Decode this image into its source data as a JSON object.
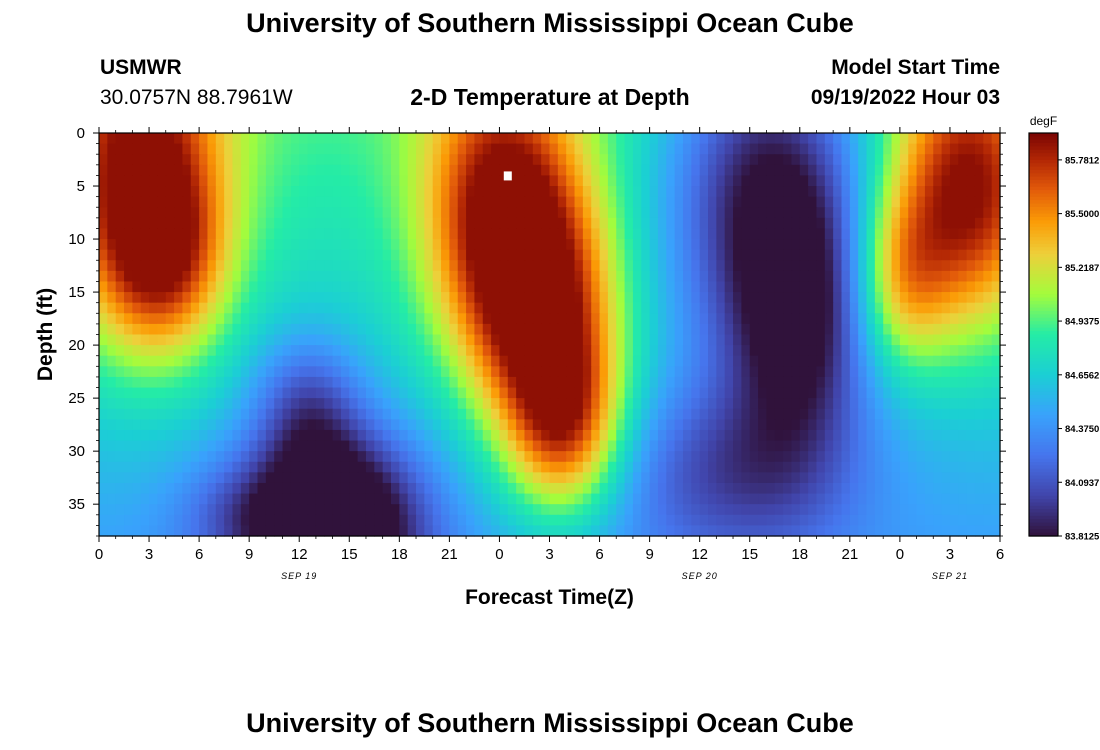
{
  "page": {
    "title": "University of Southern Mississippi Ocean Cube",
    "station": "USMWR",
    "coords": "30.0757N  88.7961W",
    "plot_title": "2-D Temperature at Depth",
    "model_label": "Model Start Time",
    "model_time": "09/19/2022 Hour 03",
    "footer_title": "University of Southern Mississippi Ocean Cube"
  },
  "chart_data": {
    "type": "heatmap",
    "title": "2-D Temperature at Depth",
    "xlabel": "Forecast Time(Z)",
    "ylabel": "Depth (ft)",
    "x_ticks": [
      "0",
      "3",
      "6",
      "9",
      "12",
      "15",
      "18",
      "21",
      "0",
      "3",
      "6",
      "9",
      "12",
      "15",
      "18",
      "21",
      "0",
      "3",
      "6"
    ],
    "x_range_hours": [
      0,
      54
    ],
    "date_labels": [
      {
        "text": "SEP 19",
        "hour": 12
      },
      {
        "text": "SEP 20",
        "hour": 36
      },
      {
        "text": "SEP 21",
        "hour": 51
      }
    ],
    "y_ticks": [
      0,
      5,
      10,
      15,
      20,
      25,
      30,
      35
    ],
    "y_range_ft": [
      0,
      38
    ],
    "colorbar": {
      "unit": "degF",
      "ticks": [
        "85.7812",
        "85.5000",
        "85.2187",
        "84.9375",
        "84.6562",
        "84.3750",
        "84.0937",
        "83.8125"
      ],
      "min": 83.8125,
      "max": 85.9219
    },
    "marker": {
      "hour": 24.5,
      "depth": 4
    },
    "field_description": "Warm surface cores (~85.8F) at 0-6Z SEP 19, 21Z SEP 19-6Z SEP 20 and 21Z SEP 20-6Z SEP 21; coolest water (~83.8F) near 35-38 ft around 15Z SEP 19 and near surface ~16Z SEP 20",
    "warm_features": [
      {
        "t": 2.5,
        "d": 4,
        "amp": 1.1,
        "st": 3.5,
        "sd": 11
      },
      {
        "t": 4.0,
        "d": 12,
        "amp": 0.6,
        "st": 2.5,
        "sd": 6
      },
      {
        "t": 24.0,
        "d": 8,
        "amp": 1.1,
        "st": 3.2,
        "sd": 10
      },
      {
        "t": 27.0,
        "d": 18,
        "amp": 1.0,
        "st": 3.0,
        "sd": 9
      },
      {
        "t": 28.0,
        "d": 28,
        "amp": 0.8,
        "st": 2.4,
        "sd": 6
      },
      {
        "t": 52.0,
        "d": 6,
        "amp": 1.1,
        "st": 3.2,
        "sd": 9
      },
      {
        "t": 48.0,
        "d": 14,
        "amp": 0.6,
        "st": 2.0,
        "sd": 6
      }
    ],
    "cool_features": [
      {
        "t": 14.5,
        "d": 37,
        "amp": 1.05,
        "st": 3.5,
        "sd": 6
      },
      {
        "t": 12.5,
        "d": 26,
        "amp": 0.5,
        "st": 2.3,
        "sd": 5
      },
      {
        "t": 40.0,
        "d": 4,
        "amp": 0.95,
        "st": 4.5,
        "sd": 12
      },
      {
        "t": 42.0,
        "d": 18,
        "amp": 0.65,
        "st": 3.0,
        "sd": 9
      },
      {
        "t": 38.0,
        "d": 32,
        "amp": 0.45,
        "st": 5.0,
        "sd": 6
      },
      {
        "t": 9.0,
        "d": 36,
        "amp": 0.35,
        "st": 3.0,
        "sd": 4
      }
    ],
    "base_temp": 84.9,
    "depth_cooling": 0.45
  }
}
